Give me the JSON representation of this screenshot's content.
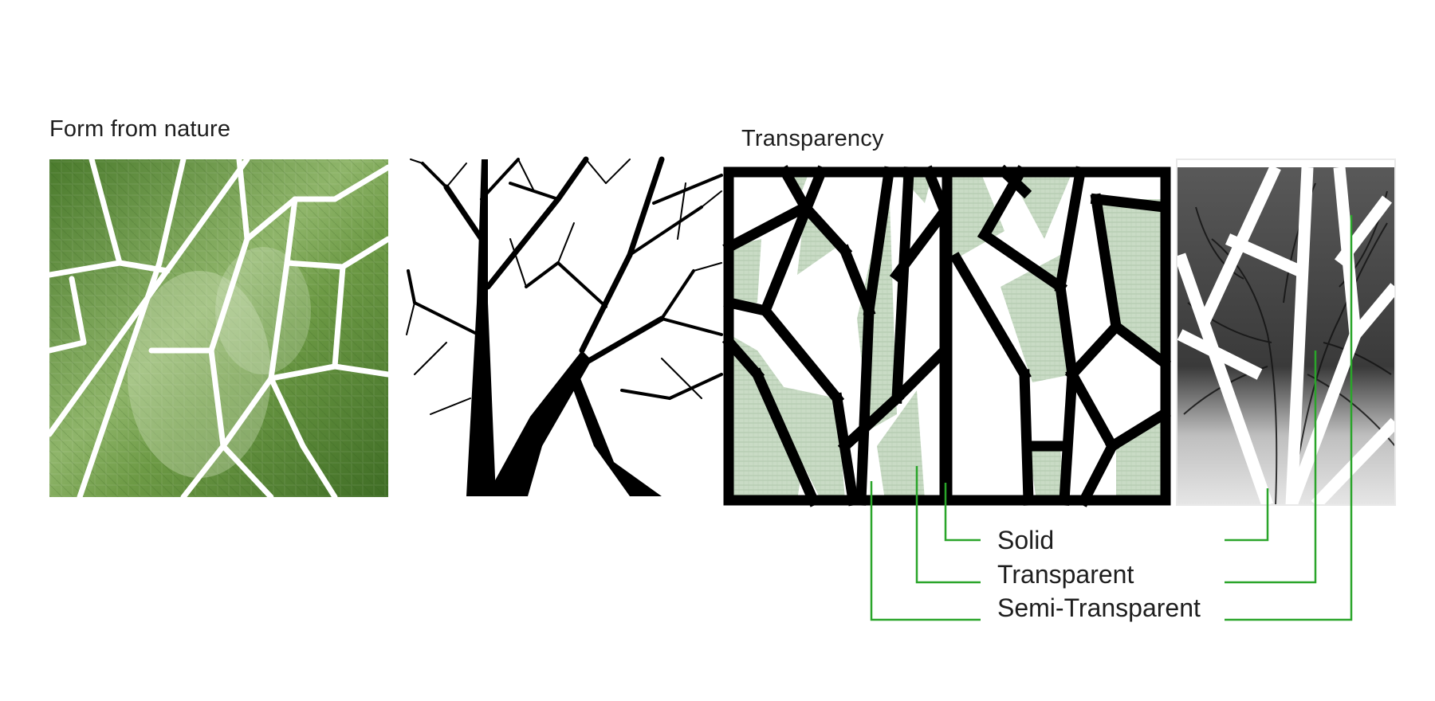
{
  "headings": {
    "form_from_nature": "Form from nature",
    "transparency": "Transparency"
  },
  "legend": {
    "solid": "Solid",
    "transparent": "Transparent",
    "semi_transparent": "Semi-Transparent"
  },
  "colors": {
    "leaf_green": "#5f8d3a",
    "panel_fill": "#c7d9c3",
    "frame": "#000000",
    "leader_line": "#2aa52a",
    "text": "#1e1e1e"
  }
}
